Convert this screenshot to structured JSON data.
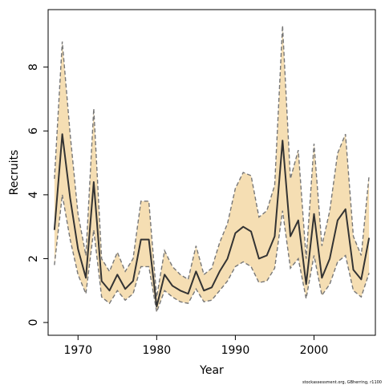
{
  "chart_data": {
    "type": "line",
    "title": "",
    "xlabel": "Year",
    "ylabel": "Recruits",
    "xlim": [
      1966.2,
      2007.8
    ],
    "ylim": [
      -0.4,
      9.8
    ],
    "xticks": [
      1970,
      1980,
      1990,
      2000
    ],
    "yticks": [
      0,
      2,
      4,
      6,
      8
    ],
    "grid": false,
    "legend": "none",
    "credit": "stockassessment.org, GBherring, r1100",
    "colors": {
      "band": "#f5deb3",
      "line": "#333333",
      "bound": "#777777",
      "axis": "#000000"
    },
    "x": [
      1967,
      1968,
      1969,
      1970,
      1971,
      1972,
      1973,
      1974,
      1975,
      1976,
      1977,
      1978,
      1979,
      1980,
      1981,
      1982,
      1983,
      1984,
      1985,
      1986,
      1987,
      1988,
      1989,
      1990,
      1991,
      1992,
      1993,
      1994,
      1995,
      1996,
      1997,
      1998,
      1999,
      2000,
      2001,
      2002,
      2003,
      2004,
      2005,
      2006,
      2007
    ],
    "series": [
      {
        "role": "estimate",
        "values": [
          2.9,
          5.9,
          3.9,
          2.3,
          1.4,
          4.4,
          1.3,
          1.0,
          1.5,
          1.05,
          1.3,
          2.6,
          2.6,
          0.5,
          1.5,
          1.15,
          1.0,
          0.9,
          1.6,
          1.0,
          1.1,
          1.6,
          2.0,
          2.8,
          3.0,
          2.85,
          2.0,
          2.1,
          2.7,
          5.7,
          2.7,
          3.2,
          1.2,
          3.4,
          1.4,
          2.0,
          3.2,
          3.55,
          1.65,
          1.35,
          2.65
        ]
      },
      {
        "role": "upper",
        "values": [
          4.5,
          8.8,
          5.9,
          3.4,
          2.1,
          6.7,
          2.0,
          1.6,
          2.2,
          1.6,
          2.0,
          3.8,
          3.8,
          0.8,
          2.25,
          1.75,
          1.5,
          1.35,
          2.4,
          1.5,
          1.7,
          2.5,
          3.1,
          4.2,
          4.7,
          4.6,
          3.3,
          3.5,
          4.3,
          9.3,
          4.5,
          5.4,
          2.0,
          5.6,
          2.4,
          3.5,
          5.3,
          5.9,
          2.7,
          2.1,
          4.6
        ]
      },
      {
        "role": "lower",
        "values": [
          1.8,
          4.0,
          2.6,
          1.5,
          0.9,
          2.9,
          0.8,
          0.6,
          1.0,
          0.7,
          0.9,
          1.75,
          1.75,
          0.33,
          1.0,
          0.8,
          0.65,
          0.6,
          1.05,
          0.65,
          0.7,
          1.0,
          1.3,
          1.75,
          1.9,
          1.75,
          1.25,
          1.3,
          1.7,
          3.5,
          1.7,
          2.0,
          0.75,
          2.1,
          0.85,
          1.2,
          1.9,
          2.1,
          1.0,
          0.8,
          1.55
        ]
      }
    ]
  }
}
